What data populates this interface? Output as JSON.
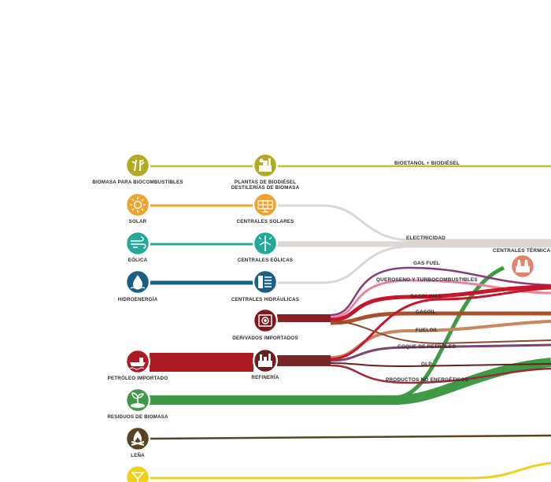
{
  "colors": {
    "biofuel": "#c6bd33",
    "solar": "#f0a22e",
    "wind": "#23a89a",
    "hydro": "#1a5f86",
    "petroleum": "#ad1a22",
    "biomass_waste": "#3f9a46",
    "firewood": "#5a4223",
    "yellow": "#efd11c",
    "electricity": "#dcd8d1",
    "refinery": "#6b1f1c",
    "derivatives": "#7a1a1c"
  },
  "sources": [
    {
      "label": "BIOMASA PARA BIOCOMBUSTIBLES",
      "icon": "sugarcane-icon"
    },
    {
      "label": "SOLAR",
      "icon": "sun-icon"
    },
    {
      "label": "EÓLICA",
      "icon": "wind-icon"
    },
    {
      "label": "HIDROENERGÍA",
      "icon": "water-drop-icon"
    },
    {
      "label": "PETRÓLEO IMPORTADO",
      "icon": "oil-tanker-icon"
    },
    {
      "label": "RESIDUOS DE BIOMASA",
      "icon": "plant-icon"
    },
    {
      "label": "LEÑA",
      "icon": "fire-icon"
    },
    {
      "label": "",
      "icon": "gas-icon"
    }
  ],
  "centers": [
    {
      "label_lines": [
        "PLANTAS DE BIODIÉSEL",
        "DESTILERÍAS DE BIOMASA"
      ],
      "icon": "biodiesel-plant-icon"
    },
    {
      "label_lines": [
        "CENTRALES SOLARES"
      ],
      "icon": "solar-panel-icon"
    },
    {
      "label_lines": [
        "CENTRALES EÓLICAS"
      ],
      "icon": "wind-turbine-icon"
    },
    {
      "label_lines": [
        "CENTRALES HIDRÁULICAS"
      ],
      "icon": "dam-icon"
    },
    {
      "label_lines": [
        "DERIVADOS IMPORTADOS"
      ],
      "icon": "fuel-container-icon"
    },
    {
      "label_lines": [
        "REFINERÍA"
      ],
      "icon": "refinery-icon"
    }
  ],
  "flows": {
    "bioetanol": "BIOETANOL + BIODIÉSEL",
    "electricidad": "ELECTRICIDAD",
    "termica": "CENTRALES TÉRMICA",
    "gas_fuel": "GAS FUEL",
    "queroseno": "QUEROSENO Y TURBOCOMBUSTIBLES",
    "gasolinas": "GASOLINAS",
    "gasoil": "GASOIL",
    "fueloil": "FUELOIL",
    "coque": "COQUE DE PETRÓLEO",
    "glp": "GLP",
    "productos": "PRODUCTOS NO ENERGÉTICOS"
  }
}
